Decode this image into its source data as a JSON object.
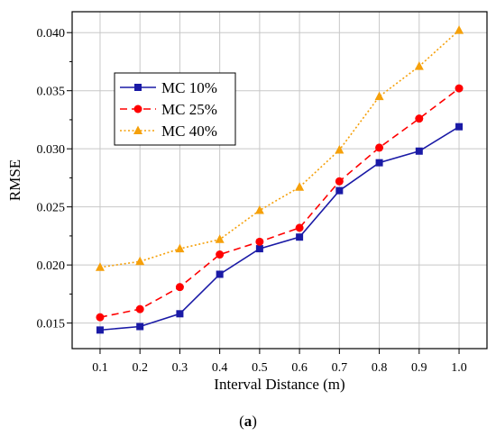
{
  "chart_data": {
    "type": "line",
    "xlabel": "Interval Distance (m)",
    "ylabel": "RMSE",
    "x": [
      0.1,
      0.2,
      0.3,
      0.4,
      0.5,
      0.6,
      0.7,
      0.8,
      0.9,
      1.0
    ],
    "x_tick_labels": [
      "0.1",
      "0.2",
      "0.3",
      "0.4",
      "0.5",
      "0.6",
      "0.7",
      "0.8",
      "0.9",
      "1.0"
    ],
    "xlim": [
      0.03,
      1.07
    ],
    "ylim": [
      0.0128,
      0.0418
    ],
    "y_ticks": [
      0.015,
      0.02,
      0.025,
      0.03,
      0.035,
      0.04
    ],
    "y_tick_labels": [
      "0.015",
      "0.020",
      "0.025",
      "0.030",
      "0.035",
      "0.040"
    ],
    "grid": true,
    "legend_position": "upper-left",
    "series": [
      {
        "name": "MC 10%",
        "color": "#1a1aa6",
        "line_style": "solid",
        "marker": "square",
        "values": [
          0.0144,
          0.0147,
          0.0158,
          0.0192,
          0.0214,
          0.0224,
          0.0264,
          0.0288,
          0.0298,
          0.0319
        ]
      },
      {
        "name": "MC 25%",
        "color": "#ff0000",
        "line_style": "dashed",
        "marker": "circle",
        "values": [
          0.0155,
          0.0162,
          0.0181,
          0.0209,
          0.022,
          0.0232,
          0.0272,
          0.0301,
          0.0326,
          0.0352
        ]
      },
      {
        "name": "MC 40%",
        "color": "#f5a00a",
        "line_style": "dotted",
        "marker": "triangle",
        "values": [
          0.0198,
          0.0203,
          0.0214,
          0.0222,
          0.0247,
          0.0267,
          0.0299,
          0.0345,
          0.0371,
          0.0402
        ]
      }
    ]
  },
  "caption": {
    "open": "(",
    "label": "a",
    "close": ")"
  }
}
